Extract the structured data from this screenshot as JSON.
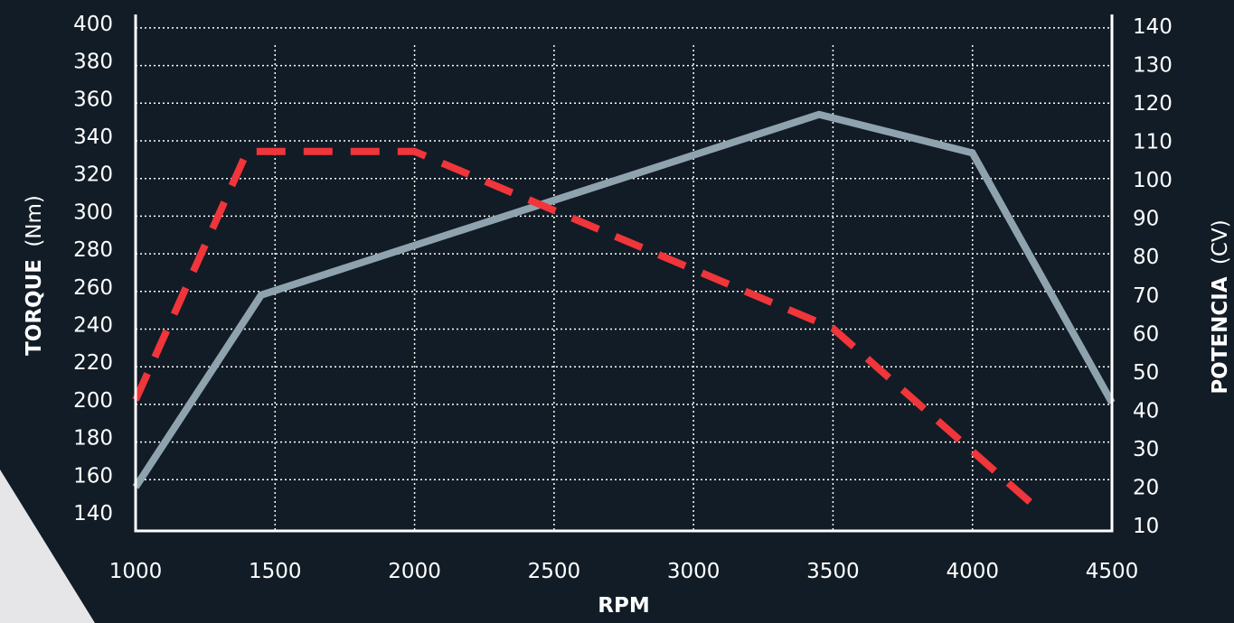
{
  "chart_data": {
    "type": "line",
    "x_axis": {
      "label": "RPM",
      "range": [
        1000,
        4500
      ],
      "ticks": [
        1000,
        1500,
        2000,
        2500,
        3000,
        3500,
        4000,
        4500
      ]
    },
    "y_axis_left": {
      "label_bold": "TORQUE",
      "label_unit": "(Nm)",
      "range": [
        140,
        400
      ],
      "ticks": [
        140,
        160,
        180,
        200,
        220,
        240,
        260,
        280,
        300,
        320,
        340,
        360,
        380,
        400
      ]
    },
    "y_axis_right": {
      "label_bold": "POTENCIA",
      "label_unit": "(CV)",
      "range": [
        10,
        140
      ],
      "ticks": [
        10,
        20,
        30,
        40,
        50,
        60,
        70,
        80,
        90,
        100,
        110,
        120,
        130,
        140
      ]
    },
    "grid": true,
    "series": [
      {
        "axis": "right",
        "color": "#8fa3ae",
        "style": "solid",
        "points": [
          [
            1000,
            20
          ],
          [
            1450,
            70
          ],
          [
            3450,
            117
          ],
          [
            4000,
            107
          ],
          [
            4500,
            42
          ]
        ]
      },
      {
        "axis": "left",
        "color": "#f0353b",
        "style": "dashed",
        "points": [
          [
            1000,
            200
          ],
          [
            1400,
            332
          ],
          [
            2000,
            332
          ],
          [
            3500,
            238
          ],
          [
            4250,
            140
          ]
        ]
      }
    ]
  },
  "colors": {
    "background": "#111c26",
    "axis": "#ffffff",
    "grid": "#ffffff",
    "corner": "#e6e6e8"
  }
}
